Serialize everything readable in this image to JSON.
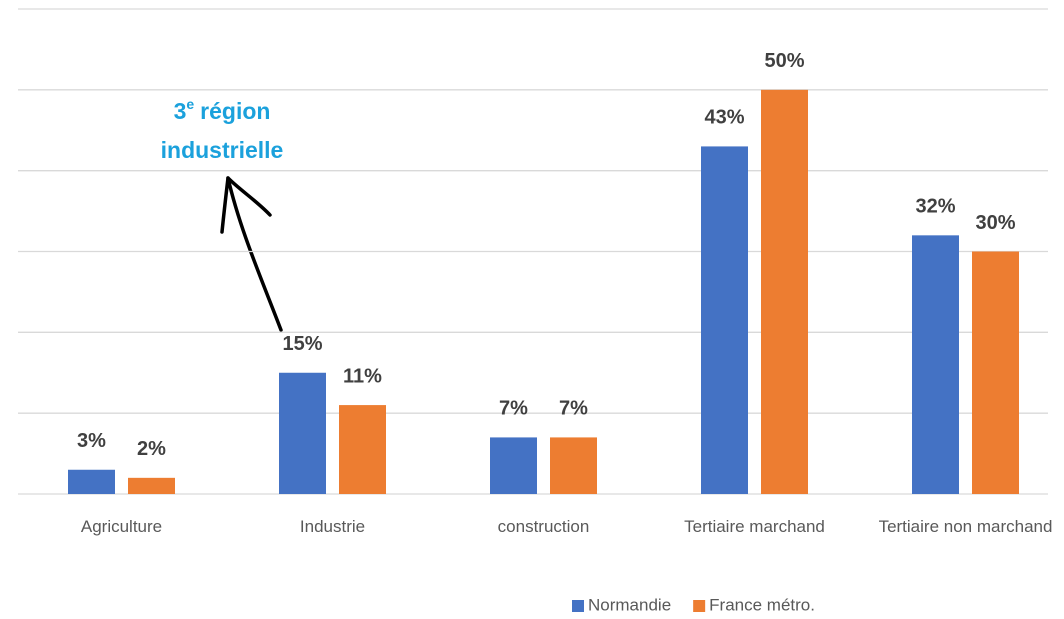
{
  "chart_data": {
    "type": "bar",
    "categories": [
      "Agriculture",
      "Industrie",
      "construction",
      "Tertiaire marchand",
      "Tertiaire non marchand"
    ],
    "series": [
      {
        "name": "Normandie",
        "color": "#4472c4",
        "values": [
          3,
          15,
          7,
          43,
          32
        ],
        "value_labels": [
          "3%",
          "15%",
          "7%",
          "43%",
          "32%"
        ]
      },
      {
        "name": "France métro.",
        "color": "#ed7d31",
        "values": [
          2,
          11,
          7,
          50,
          30
        ],
        "value_labels": [
          "2%",
          "11%",
          "7%",
          "50%",
          "30%"
        ]
      }
    ],
    "ylim": [
      0,
      60
    ],
    "yticks": [
      0,
      10,
      20,
      30,
      40,
      50,
      60
    ],
    "grid": true,
    "legend": "bottom",
    "annotation": {
      "ordinal": "3",
      "suffix": "e",
      "line1": "région",
      "line2": "industrielle",
      "color": "#1ba1dc"
    }
  }
}
